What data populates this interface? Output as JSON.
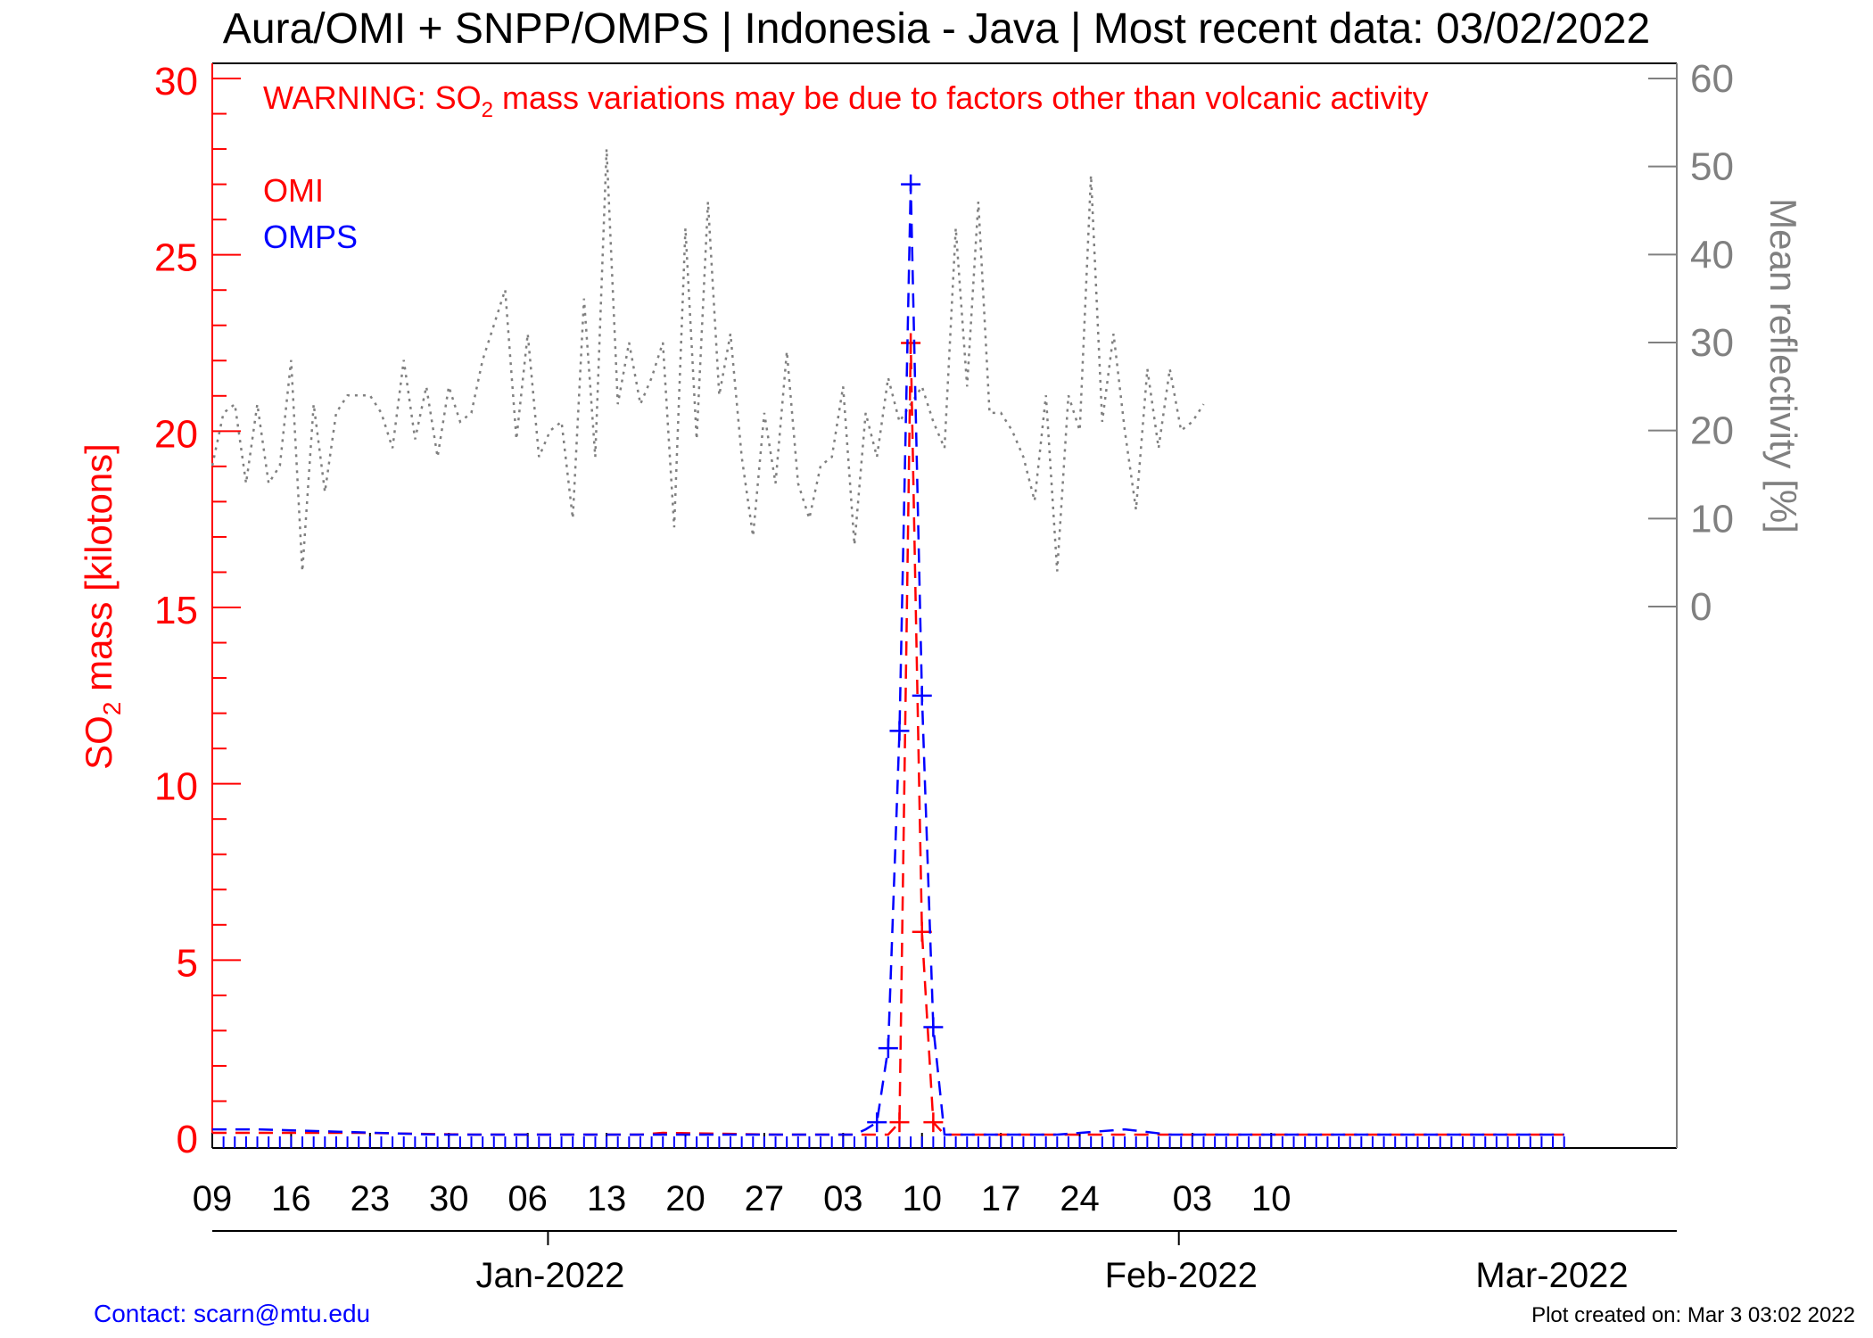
{
  "title": "Aura/OMI + SNPP/OMPS | Indonesia - Java | Most recent data: 03/02/2022",
  "warning": {
    "prefix": "WARNING: SO",
    "sub": "2",
    "suffix": " mass variations may be due to factors other than volcanic activity"
  },
  "contact": "Contact: scarn@mtu.edu",
  "plot_created": "Plot created on: Mar  3 03:02 2022",
  "colors": {
    "omi": "#ff0000",
    "omps": "#0000ff",
    "reflectivity": "#808080",
    "axis": "#000000"
  },
  "chart_data": {
    "type": "line",
    "x_axis": {
      "ticks": [
        "09",
        "16",
        "23",
        "30",
        "06",
        "13",
        "20",
        "27",
        "03",
        "10",
        "17",
        "24",
        "03",
        "10"
      ],
      "months": [
        "Jan-2022",
        "Feb-2022",
        "Mar-2022"
      ]
    },
    "y_left": {
      "label_prefix": "SO",
      "label_sub": "2",
      "label_suffix": " mass [kilotons]",
      "range": [
        0,
        30
      ],
      "ticks": [
        "0",
        "5",
        "10",
        "15",
        "20",
        "25",
        "30"
      ]
    },
    "y_right": {
      "label": "Mean reflectivity [%]",
      "range": [
        0,
        60
      ],
      "ticks": [
        "0",
        "10",
        "20",
        "30",
        "40",
        "50",
        "60"
      ]
    },
    "series": [
      {
        "name": "OMI",
        "style": "dashed",
        "points": [
          [
            0,
            0.1
          ],
          [
            3,
            0.1
          ],
          [
            13,
            0.1
          ],
          [
            23,
            0.05
          ],
          [
            38,
            0.05
          ],
          [
            40,
            0.1
          ],
          [
            50,
            0.05
          ],
          [
            59,
            0.05
          ],
          [
            60,
            0.05
          ],
          [
            61,
            0.4
          ],
          [
            62,
            22.5
          ],
          [
            63,
            5.8
          ],
          [
            64,
            0.4
          ],
          [
            65,
            0.05
          ],
          [
            68,
            0.05
          ],
          [
            75,
            0.05
          ],
          [
            80,
            0.05
          ],
          [
            100,
            0.05
          ],
          [
            120,
            0.05
          ]
        ]
      },
      {
        "name": "OMPS",
        "style": "dashed",
        "points": [
          [
            0,
            0.2
          ],
          [
            4,
            0.2
          ],
          [
            20,
            0.05
          ],
          [
            38,
            0.05
          ],
          [
            57,
            0.05
          ],
          [
            58,
            0.2
          ],
          [
            59,
            0.4
          ],
          [
            60,
            2.5
          ],
          [
            61,
            11.5
          ],
          [
            62,
            27
          ],
          [
            63,
            12.5
          ],
          [
            64,
            3.1
          ],
          [
            65,
            0.05
          ],
          [
            68,
            0.05
          ],
          [
            75,
            0.05
          ],
          [
            81,
            0.2
          ],
          [
            85,
            0.05
          ],
          [
            100,
            0.05
          ],
          [
            120,
            0.05
          ]
        ]
      },
      {
        "name": "Mean reflectivity",
        "axis": "right",
        "style": "dotted",
        "points": [
          [
            0,
            16
          ],
          [
            1,
            22
          ],
          [
            2,
            23
          ],
          [
            3,
            14
          ],
          [
            4,
            23
          ],
          [
            5,
            14
          ],
          [
            6,
            16
          ],
          [
            7,
            28
          ],
          [
            8,
            4
          ],
          [
            9,
            23
          ],
          [
            10,
            13
          ],
          [
            11,
            22
          ],
          [
            12,
            24
          ],
          [
            13,
            24
          ],
          [
            14,
            24
          ],
          [
            15,
            22
          ],
          [
            16,
            18
          ],
          [
            17,
            28
          ],
          [
            18,
            19
          ],
          [
            19,
            25
          ],
          [
            20,
            17
          ],
          [
            21,
            25
          ],
          [
            22,
            21
          ],
          [
            23,
            22
          ],
          [
            24,
            28
          ],
          [
            25,
            32
          ],
          [
            26,
            36
          ],
          [
            27,
            19
          ],
          [
            28,
            31
          ],
          [
            29,
            17
          ],
          [
            30,
            20
          ],
          [
            31,
            21
          ],
          [
            32,
            10
          ],
          [
            33,
            35
          ],
          [
            34,
            17
          ],
          [
            35,
            52
          ],
          [
            36,
            23
          ],
          [
            37,
            30
          ],
          [
            38,
            23
          ],
          [
            39,
            26
          ],
          [
            40,
            30
          ],
          [
            41,
            9
          ],
          [
            42,
            43
          ],
          [
            43,
            19
          ],
          [
            44,
            46
          ],
          [
            45,
            24
          ],
          [
            46,
            31
          ],
          [
            47,
            17
          ],
          [
            48,
            8
          ],
          [
            49,
            22
          ],
          [
            50,
            14
          ],
          [
            51,
            29
          ],
          [
            52,
            14
          ],
          [
            53,
            10
          ],
          [
            54,
            16
          ],
          [
            55,
            17
          ],
          [
            56,
            25
          ],
          [
            57,
            7
          ],
          [
            58,
            22
          ],
          [
            59,
            17
          ],
          [
            60,
            26
          ],
          [
            61,
            21
          ],
          [
            62,
            23
          ],
          [
            63,
            25
          ],
          [
            64,
            21
          ],
          [
            65,
            18
          ],
          [
            66,
            43
          ],
          [
            67,
            25
          ],
          [
            68,
            46
          ],
          [
            69,
            22
          ],
          [
            70,
            22
          ],
          [
            71,
            20
          ],
          [
            72,
            17
          ],
          [
            73,
            12
          ],
          [
            74,
            24
          ],
          [
            75,
            4
          ],
          [
            76,
            24
          ],
          [
            77,
            20
          ],
          [
            78,
            49
          ],
          [
            79,
            21
          ],
          [
            80,
            31
          ],
          [
            81,
            20
          ],
          [
            82,
            11
          ],
          [
            83,
            27
          ],
          [
            84,
            18
          ],
          [
            85,
            27
          ],
          [
            86,
            20
          ],
          [
            87,
            21
          ],
          [
            88,
            23
          ]
        ]
      }
    ]
  }
}
